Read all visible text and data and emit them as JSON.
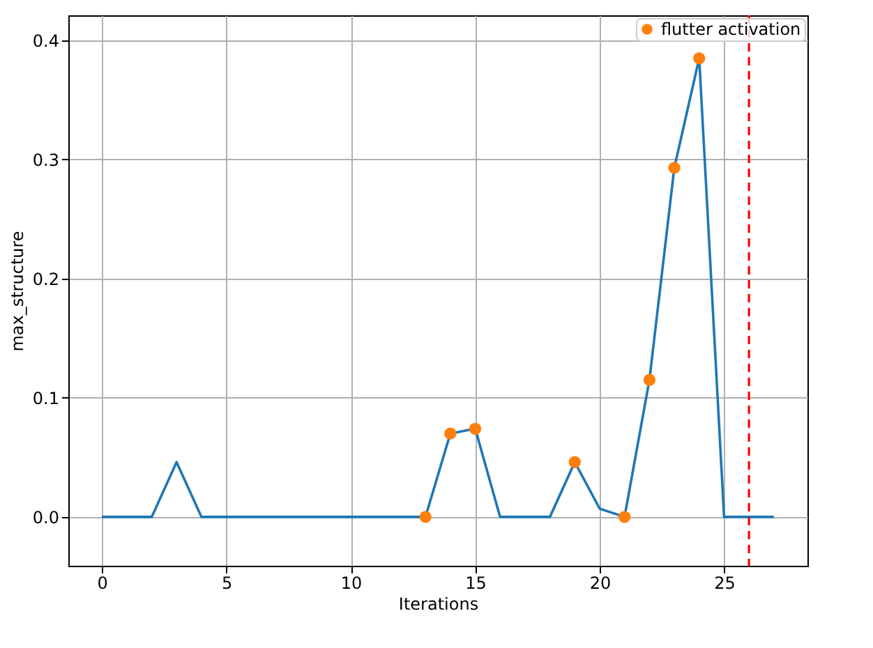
{
  "chart_data": {
    "type": "line",
    "xlabel": "Iterations",
    "ylabel": "max_structure",
    "x": [
      0,
      1,
      2,
      3,
      4,
      5,
      6,
      7,
      8,
      9,
      10,
      11,
      12,
      13,
      14,
      15,
      16,
      17,
      18,
      19,
      20,
      21,
      22,
      23,
      24,
      25,
      26,
      27
    ],
    "series": [
      {
        "color": "#1f77b4",
        "values": [
          0,
          0,
          0,
          0.046,
          0,
          0,
          0,
          0,
          0,
          0,
          0,
          0,
          0,
          0,
          0.07,
          0.074,
          0,
          0,
          0,
          0.046,
          0.007,
          0,
          0.115,
          0.293,
          0.385,
          0,
          0,
          0
        ]
      },
      {
        "type": "scatter",
        "name": "flutter activation",
        "color": "#ff7f0e",
        "marker": "circle",
        "x": [
          13,
          14,
          15,
          19,
          21,
          22,
          23,
          24
        ],
        "values": [
          0,
          0.07,
          0.074,
          0.046,
          0,
          0.115,
          0.293,
          0.385
        ]
      }
    ],
    "ref_lines": [
      {
        "axis": "x",
        "value": 26,
        "color": "#ff0000",
        "line_style": "dashed"
      }
    ],
    "xlim": [
      -1.35,
      28.35
    ],
    "ylim": [
      -0.041,
      0.421
    ],
    "xticks": [
      0,
      5,
      10,
      15,
      20,
      25
    ],
    "yticks": [
      {
        "value": 0,
        "label": "0.0"
      },
      {
        "value": 0.1,
        "label": "0.1"
      },
      {
        "value": 0.2,
        "label": "0.2"
      },
      {
        "value": 0.3,
        "label": "0.3"
      },
      {
        "value": 0.4,
        "label": "0.4"
      }
    ],
    "grid": true,
    "legend": "top right"
  }
}
